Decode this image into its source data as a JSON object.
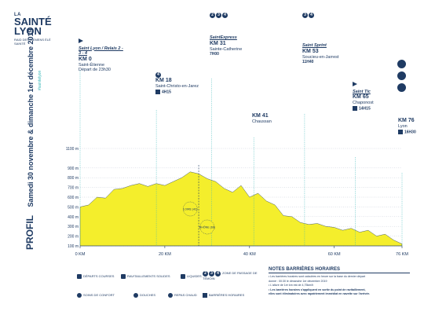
{
  "logo": {
    "line1": "LA",
    "line2": "SAINTÉ",
    "line3": "LYON",
    "line4": "RAID DES SIEMENS ÉLÉ SAINTÉ"
  },
  "side": {
    "title": "PROFIL",
    "dates": "Samedi 30 novembre & dimanche 1er décembre 2019",
    "hashtag": "#saintelyon"
  },
  "stations": [
    {
      "name": "Saint Lyon / Relais 2 - 3 - 4",
      "km": "KM 0",
      "place": "Saint-Étienne",
      "time": "Départ de 23h30",
      "extra": "00h00"
    },
    {
      "name": "",
      "km": "KM 18",
      "place": "Saint-Christo-en-Jarez",
      "time": "4H15",
      "badge": "4"
    },
    {
      "name": "SaintExpress",
      "km": "KM 31",
      "place": "Sainte-Catherine",
      "time": "7H00",
      "badges": [
        "2",
        "3",
        "4"
      ]
    },
    {
      "name": "",
      "km": "KM 41",
      "place": "Chaussan",
      "time": ""
    },
    {
      "name": "Saint Sprint",
      "km": "KM 53",
      "place": "Soucieu-en-Jarrest",
      "time": "11H40",
      "badges": [
        "3",
        "4"
      ]
    },
    {
      "name": "Saint Tic",
      "km": "KM 65",
      "place": "Chaponost",
      "time": "14H15"
    },
    {
      "name": "",
      "km": "KM 76",
      "place": "Lyon",
      "time": "16H30"
    }
  ],
  "chart_data": {
    "type": "area",
    "x_label": "KM",
    "xticks": [
      "0 KM",
      "20 KM",
      "40 KM",
      "60 KM",
      "76 KM"
    ],
    "yticks": [
      "100 m",
      "200 m",
      "300 m",
      "400 m",
      "500 m",
      "600 m",
      "700 m",
      "800 m",
      "900 m",
      "1100 m"
    ],
    "x": [
      0,
      2,
      4,
      6,
      8,
      10,
      12,
      14,
      16,
      18,
      20,
      22,
      24,
      26,
      28,
      30,
      32,
      34,
      36,
      38,
      40,
      42,
      44,
      46,
      48,
      50,
      52,
      54,
      56,
      58,
      60,
      62,
      64,
      66,
      68,
      70,
      72,
      74,
      76
    ],
    "y": [
      500,
      520,
      600,
      590,
      680,
      690,
      720,
      740,
      710,
      740,
      720,
      760,
      800,
      860,
      840,
      790,
      760,
      690,
      650,
      720,
      600,
      640,
      560,
      520,
      410,
      400,
      340,
      320,
      330,
      300,
      290,
      260,
      280,
      240,
      260,
      200,
      220,
      160,
      120
    ],
    "ylim": [
      100,
      1100
    ],
    "xlim": [
      0,
      76
    ],
    "markers": [
      {
        "label": "LOIRE (42)",
        "km": 26
      },
      {
        "label": "RHÔNE (69)",
        "km": 30
      }
    ]
  },
  "legend": {
    "items": [
      {
        "icon": "flag-icon",
        "label": "DÉPARTS COURSES"
      },
      {
        "icon": "refreshment-icon",
        "label": "RAVITAILLEMENTS SOLIDES"
      },
      {
        "icon": "liquid-icon",
        "label": "LIQUIDES"
      },
      {
        "icon": "relay-badge-icon",
        "label": "ZONE DE PASSAGE DE TÉMOIN"
      },
      {
        "icon": "comfort-icon",
        "label": "SOINS DE CONFORT"
      },
      {
        "icon": "shower-icon",
        "label": "DOUCHES"
      },
      {
        "icon": "hot-meal-icon",
        "label": "REPAS CHAUD"
      },
      {
        "icon": "barrier-icon",
        "label": "BARRIÈRES HORAIRES"
      }
    ]
  },
  "notes": {
    "title": "NOTES BARRIÈRES HORAIRES",
    "lines": [
      "• Les barrières horaires sont calculées en heure sur la base du dernier départ",
      "donné : 00:30 le dimanche 1er décembre 2019",
      "• L'allure de 1er km est de 4,75km/h",
      "• Les barrières horaires s'appliquent en sortie du point de ravitaillement,",
      "elles sont éliminatoires avec rapatriement immédiat en navette sur l'arrivée."
    ]
  }
}
